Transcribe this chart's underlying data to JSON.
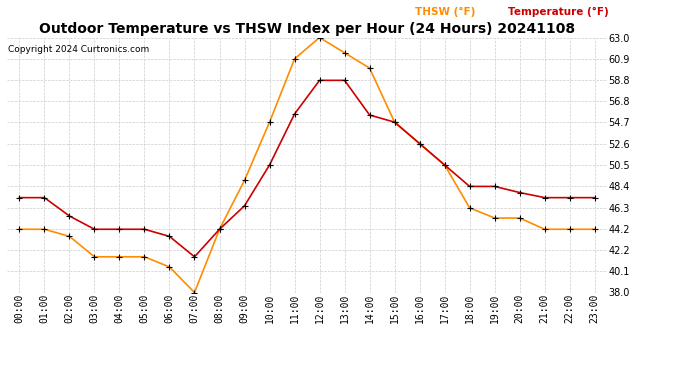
{
  "title": "Outdoor Temperature vs THSW Index per Hour (24 Hours) 20241108",
  "copyright": "Copyright 2024 Curtronics.com",
  "legend_thsw": "THSW (°F)",
  "legend_temp": "Temperature (°F)",
  "hours": [
    0,
    1,
    2,
    3,
    4,
    5,
    6,
    7,
    8,
    9,
    10,
    11,
    12,
    13,
    14,
    15,
    16,
    17,
    18,
    19,
    20,
    21,
    22,
    23
  ],
  "temperature": [
    47.3,
    47.3,
    45.5,
    44.2,
    44.2,
    44.2,
    43.5,
    41.5,
    44.2,
    46.5,
    50.5,
    55.5,
    58.8,
    58.8,
    55.4,
    54.7,
    52.6,
    50.5,
    48.4,
    48.4,
    47.8,
    47.3,
    47.3,
    47.3
  ],
  "thsw": [
    44.2,
    44.2,
    43.5,
    41.5,
    41.5,
    41.5,
    40.5,
    38.0,
    44.2,
    49.0,
    54.7,
    60.9,
    63.0,
    61.5,
    60.0,
    54.7,
    52.6,
    50.5,
    46.3,
    45.3,
    45.3,
    44.2,
    44.2,
    44.2
  ],
  "temp_color": "#cc0000",
  "thsw_color": "#ff8c00",
  "marker_color": "#000000",
  "ylim_min": 38.0,
  "ylim_max": 63.0,
  "yticks": [
    38.0,
    40.1,
    42.2,
    44.2,
    46.3,
    48.4,
    50.5,
    52.6,
    54.7,
    56.8,
    58.8,
    60.9,
    63.0
  ],
  "background_color": "#ffffff",
  "grid_color": "#cccccc",
  "title_fontsize": 10,
  "copyright_fontsize": 6.5,
  "axis_fontsize": 7,
  "legend_fontsize": 7.5
}
